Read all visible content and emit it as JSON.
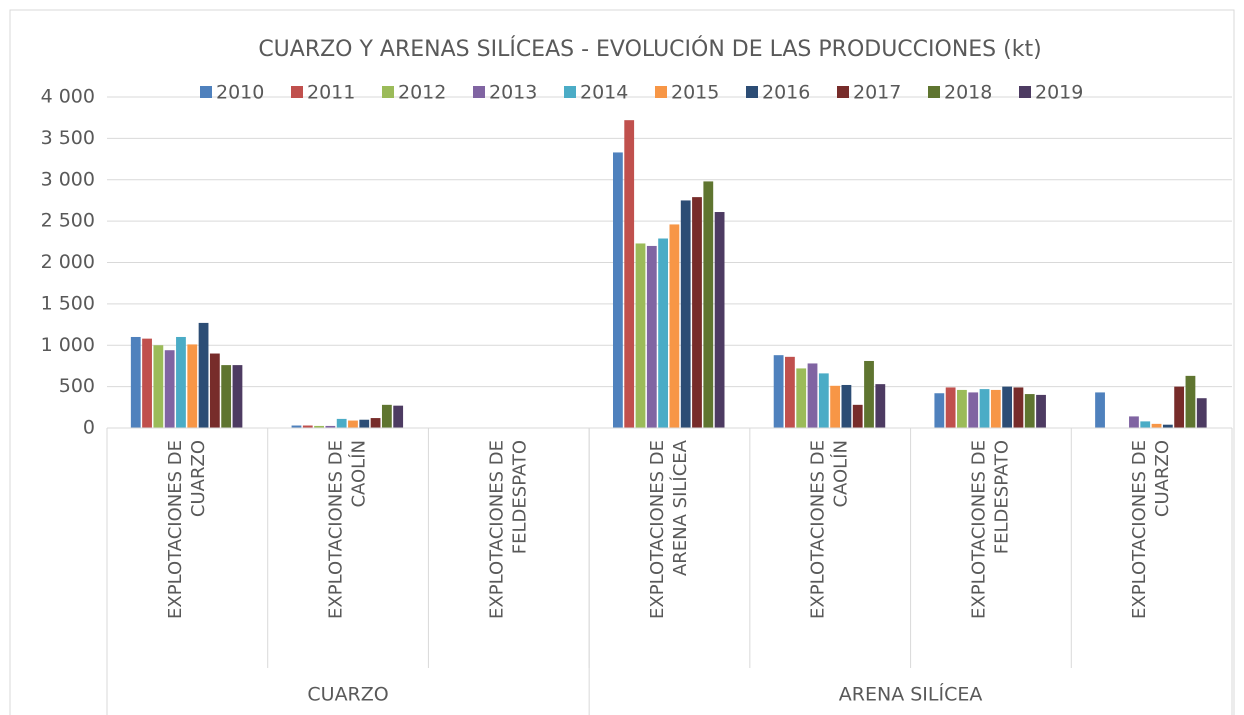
{
  "chart_data": {
    "type": "bar",
    "title": "CUARZO Y ARENAS SILÍCEAS - EVOLUCIÓN DE LAS PRODUCCIONES (kt)",
    "groups": [
      {
        "name": "CUARZO",
        "categories": [
          [
            "EXPLOTACIONES DE",
            "CUARZO"
          ],
          [
            "EXPLOTACIONES DE",
            "CAOLÍN"
          ],
          [
            "EXPLOTACIONES DE",
            "FELDESPATO"
          ]
        ]
      },
      {
        "name": "ARENA SILÍCEA",
        "categories": [
          [
            "EXPLOTACIONES DE",
            "ARENA SILÍCEA"
          ],
          [
            "EXPLOTACIONES DE",
            "CAOLÍN"
          ],
          [
            "EXPLOTACIONES DE",
            "FELDESPATO"
          ],
          [
            "EXPLOTACIONES DE",
            "CUARZO"
          ]
        ]
      }
    ],
    "series": [
      {
        "name": "2010",
        "color": "#4f81bd",
        "values": [
          1100,
          30,
          0,
          3330,
          880,
          420,
          430
        ]
      },
      {
        "name": "2011",
        "color": "#c0504d",
        "values": [
          1080,
          30,
          0,
          3720,
          860,
          490,
          0
        ]
      },
      {
        "name": "2012",
        "color": "#9bbb59",
        "values": [
          1000,
          25,
          0,
          2230,
          720,
          460,
          0
        ]
      },
      {
        "name": "2013",
        "color": "#8064a2",
        "values": [
          940,
          25,
          0,
          2200,
          780,
          430,
          140
        ]
      },
      {
        "name": "2014",
        "color": "#4bacc6",
        "values": [
          1100,
          110,
          0,
          2290,
          660,
          470,
          80
        ]
      },
      {
        "name": "2015",
        "color": "#f79646",
        "values": [
          1010,
          90,
          0,
          2460,
          510,
          460,
          50
        ]
      },
      {
        "name": "2016",
        "color": "#2c4d75",
        "values": [
          1270,
          100,
          0,
          2750,
          520,
          500,
          40
        ]
      },
      {
        "name": "2017",
        "color": "#772c2a",
        "values": [
          900,
          120,
          0,
          2790,
          280,
          490,
          500
        ]
      },
      {
        "name": "2018",
        "color": "#5f7530",
        "values": [
          760,
          280,
          0,
          2980,
          810,
          410,
          630
        ]
      },
      {
        "name": "2019",
        "color": "#4d3b62",
        "values": [
          760,
          270,
          0,
          2610,
          530,
          400,
          360
        ]
      }
    ],
    "ylim": [
      0,
      4000
    ],
    "yticks": [
      0,
      {
        "value": 500,
        "label": "500"
      },
      {
        "value": 1000,
        "label": "1 000"
      },
      {
        "value": 1500,
        "label": "1 500"
      },
      {
        "value": 2000,
        "label": "2 000"
      },
      {
        "value": 2500,
        "label": "2 500"
      },
      {
        "value": 3000,
        "label": "3 000"
      },
      {
        "value": 3500,
        "label": "3 500"
      },
      {
        "value": 4000,
        "label": "4 000"
      }
    ],
    "grid": true,
    "legend": "top"
  }
}
